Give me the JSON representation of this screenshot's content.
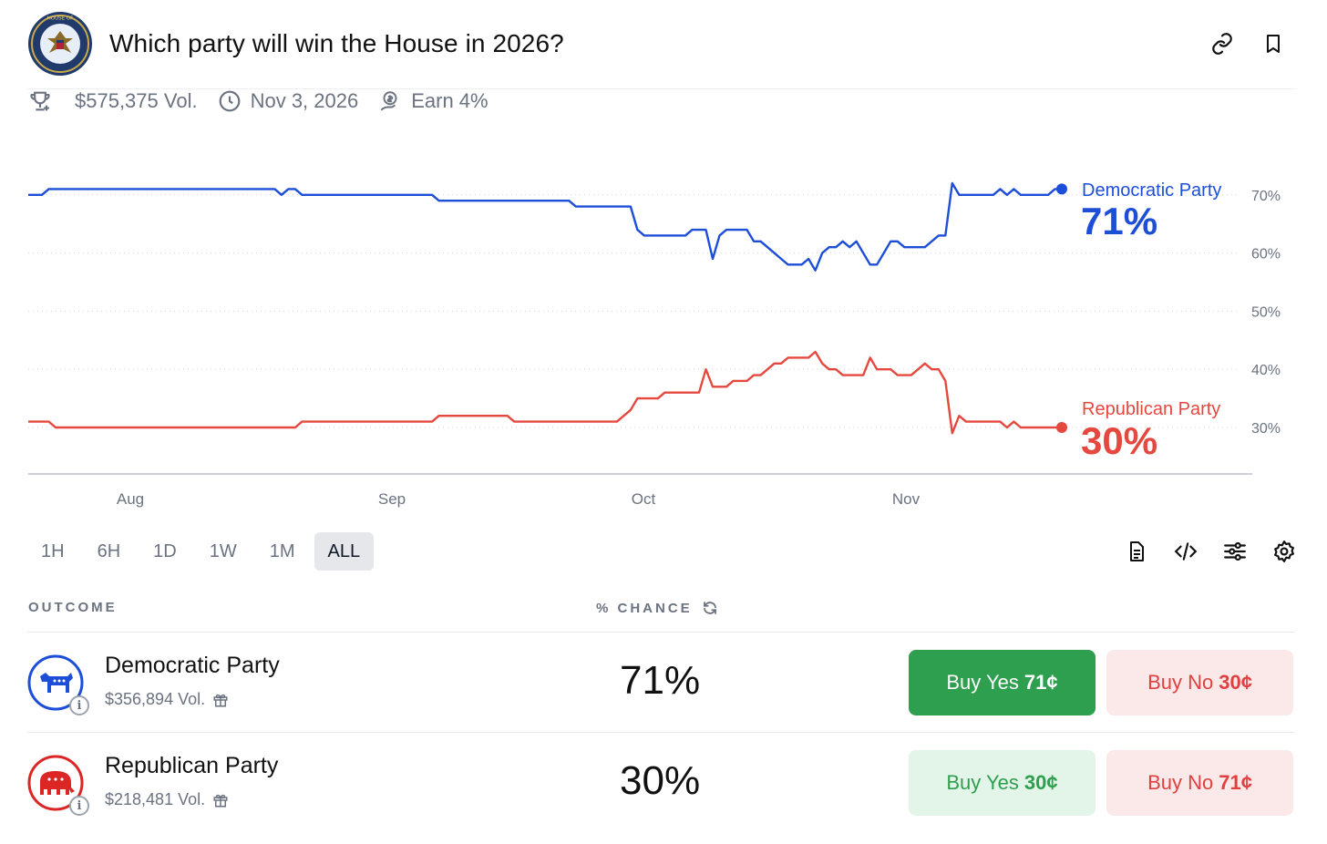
{
  "header": {
    "title": "Which party will win the House in 2026?",
    "seal_text": "U.S. HOUSE OF REPRESENTATIVES"
  },
  "meta": {
    "volume": "$575,375 Vol.",
    "end_date": "Nov 3, 2026",
    "earn": "Earn 4%"
  },
  "chart_data": {
    "type": "line",
    "x_labels": [
      "Aug",
      "Sep",
      "Oct",
      "Nov"
    ],
    "y_ticks": [
      "70%",
      "60%",
      "50%",
      "40%",
      "30%"
    ],
    "ylim": [
      22,
      80
    ],
    "grid": true,
    "series": [
      {
        "name": "Democratic Party",
        "color": "#1d4ed8",
        "current_label": "71%",
        "values": [
          70,
          70,
          70,
          71,
          71,
          71,
          71,
          71,
          71,
          71,
          71,
          71,
          71,
          71,
          71,
          71,
          71,
          71,
          71,
          71,
          71,
          71,
          71,
          71,
          71,
          71,
          71,
          71,
          71,
          71,
          71,
          71,
          71,
          71,
          71,
          71,
          71,
          70,
          71,
          71,
          70,
          70,
          70,
          70,
          70,
          70,
          70,
          70,
          70,
          70,
          70,
          70,
          70,
          70,
          70,
          70,
          70,
          70,
          70,
          70,
          69,
          69,
          69,
          69,
          69,
          69,
          69,
          69,
          69,
          69,
          69,
          69,
          69,
          69,
          69,
          69,
          69,
          69,
          69,
          69,
          68,
          68,
          68,
          68,
          68,
          68,
          68,
          68,
          68,
          64,
          63,
          63,
          63,
          63,
          63,
          63,
          63,
          64,
          64,
          64,
          59,
          63,
          64,
          64,
          64,
          64,
          62,
          62,
          61,
          60,
          59,
          58,
          58,
          58,
          59,
          57,
          60,
          61,
          61,
          62,
          61,
          62,
          60,
          58,
          58,
          60,
          62,
          62,
          61,
          61,
          61,
          61,
          62,
          63,
          63,
          72,
          70,
          70,
          70,
          70,
          70,
          70,
          71,
          70,
          71,
          70,
          70,
          70,
          70,
          70,
          71,
          71
        ]
      },
      {
        "name": "Republican Party",
        "color": "#e5483f",
        "current_label": "30%",
        "values": [
          31,
          31,
          31,
          31,
          30,
          30,
          30,
          30,
          30,
          30,
          30,
          30,
          30,
          30,
          30,
          30,
          30,
          30,
          30,
          30,
          30,
          30,
          30,
          30,
          30,
          30,
          30,
          30,
          30,
          30,
          30,
          30,
          30,
          30,
          30,
          30,
          30,
          30,
          30,
          30,
          31,
          31,
          31,
          31,
          31,
          31,
          31,
          31,
          31,
          31,
          31,
          31,
          31,
          31,
          31,
          31,
          31,
          31,
          31,
          31,
          32,
          32,
          32,
          32,
          32,
          32,
          32,
          32,
          32,
          32,
          32,
          31,
          31,
          31,
          31,
          31,
          31,
          31,
          31,
          31,
          31,
          31,
          31,
          31,
          31,
          31,
          31,
          32,
          33,
          35,
          35,
          35,
          35,
          36,
          36,
          36,
          36,
          36,
          36,
          40,
          37,
          37,
          37,
          38,
          38,
          38,
          39,
          39,
          40,
          41,
          41,
          42,
          42,
          42,
          42,
          43,
          41,
          40,
          40,
          39,
          39,
          39,
          39,
          42,
          40,
          40,
          40,
          39,
          39,
          39,
          40,
          41,
          40,
          40,
          38,
          29,
          32,
          31,
          31,
          31,
          31,
          31,
          31,
          30,
          31,
          30,
          30,
          30,
          30,
          30,
          30,
          30
        ]
      }
    ]
  },
  "range": {
    "options": [
      "1H",
      "6H",
      "1D",
      "1W",
      "1M",
      "ALL"
    ],
    "active": "ALL"
  },
  "table": {
    "head_outcome": "OUTCOME",
    "head_chance": "% CHANCE",
    "rows": [
      {
        "name": "Democratic Party",
        "volume": "$356,894 Vol.",
        "chance": "71%",
        "yes_label": "Buy Yes",
        "yes_price": "71¢",
        "no_label": "Buy No",
        "no_price": "30¢"
      },
      {
        "name": "Republican Party",
        "volume": "$218,481 Vol.",
        "chance": "30%",
        "yes_label": "Buy Yes",
        "yes_price": "30¢",
        "no_label": "Buy No",
        "no_price": "71¢"
      }
    ]
  }
}
